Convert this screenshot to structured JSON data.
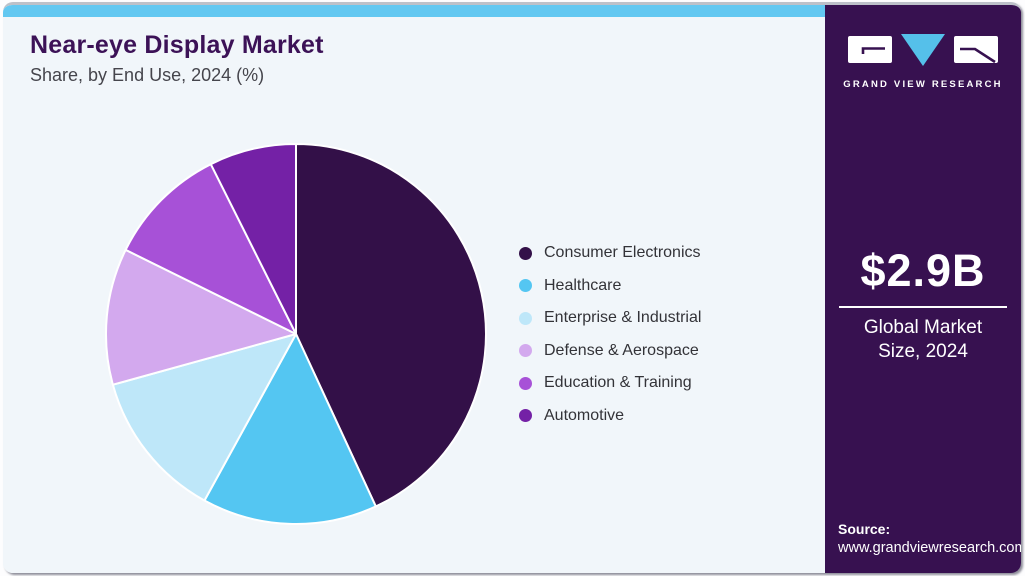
{
  "header": {
    "title": "Near-eye Display Market",
    "subtitle": "Share, by End Use, 2024 (%)"
  },
  "chart_data": {
    "type": "pie",
    "title": "Near-eye Display Market Share, by End Use, 2024 (%)",
    "categories": [
      "Consumer Electronics",
      "Healthcare",
      "Enterprise & Industrial",
      "Defense & Aerospace",
      "Education & Training",
      "Automotive"
    ],
    "values": [
      43.1,
      14.9,
      12.7,
      11.6,
      10.3,
      7.4
    ],
    "values_estimated_from_angles": true,
    "colors": [
      "#331048",
      "#54c6f2",
      "#bee7f9",
      "#d3a9ee",
      "#a751d7",
      "#7421a6"
    ],
    "legend_position": "right",
    "start_angle_deg": 0,
    "direction": "clockwise"
  },
  "sidebar": {
    "logo_text": "GRAND VIEW RESEARCH",
    "market_size": "$2.9B",
    "market_size_label": "Global Market Size, 2024",
    "source_label": "Source:",
    "source_url": "www.grandviewresearch.com"
  },
  "colors": {
    "accent_cyan": "#63c8f1",
    "sidebar_bg": "#371150",
    "title_purple": "#3c1257",
    "main_bg": "#f1f6fa",
    "logo_triangle_blue": "#55c0ea"
  }
}
